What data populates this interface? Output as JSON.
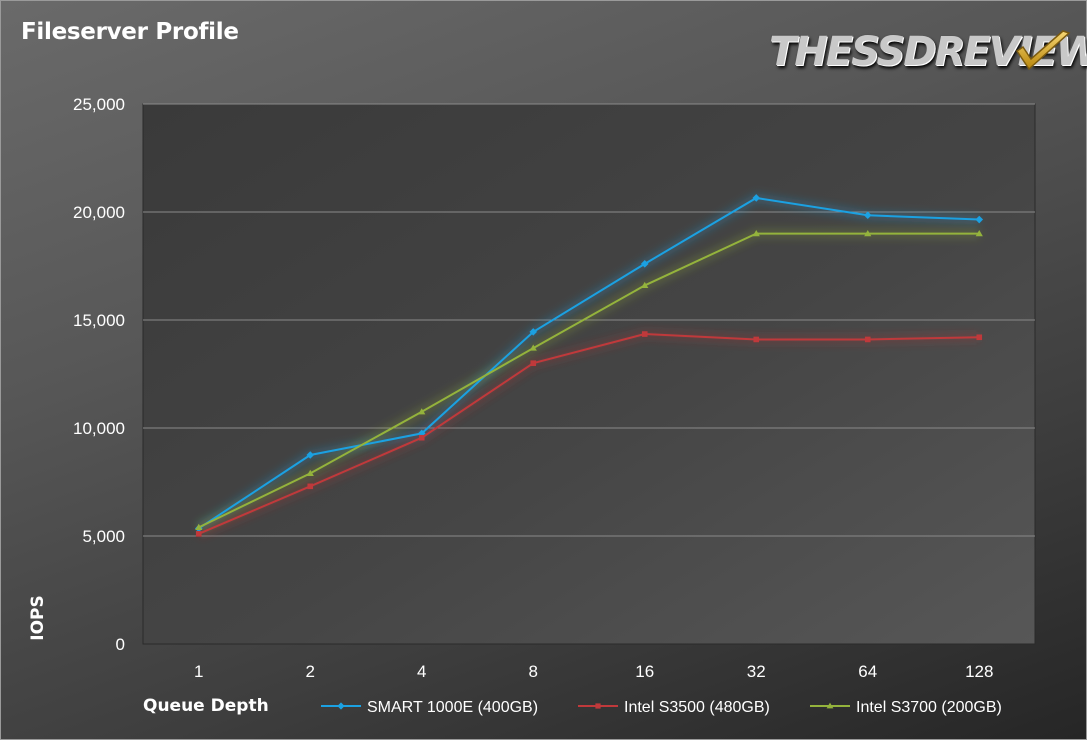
{
  "chart_data": {
    "type": "line",
    "title": "Fileserver Profile",
    "xlabel": "Queue Depth",
    "ylabel": "IOPS",
    "categories": [
      "1",
      "2",
      "4",
      "8",
      "16",
      "32",
      "64",
      "128"
    ],
    "ylim": [
      0,
      25000
    ],
    "yticks": [
      0,
      5000,
      10000,
      15000,
      20000,
      25000
    ],
    "ytick_labels": [
      "0",
      "5,000",
      "10,000",
      "15,000",
      "20,000",
      "25,000"
    ],
    "grid": true,
    "legend_position": "bottom",
    "series": [
      {
        "name": "SMART 1000E (400GB)",
        "color": "#1ba1e2",
        "marker": "diamond",
        "values": [
          5350,
          8750,
          9750,
          14450,
          17600,
          20650,
          19850,
          19650
        ]
      },
      {
        "name": "Intel S3500 (480GB)",
        "color": "#c0393b",
        "marker": "square",
        "values": [
          5100,
          7300,
          9550,
          13000,
          14350,
          14100,
          14100,
          14200
        ]
      },
      {
        "name": "Intel S3700 (200GB)",
        "color": "#94b33c",
        "marker": "triangle",
        "values": [
          5400,
          7900,
          10750,
          13700,
          16600,
          19000,
          19000,
          19000
        ]
      }
    ]
  },
  "branding": {
    "logo_text": "THESSDREVIEW",
    "check_icon": "checkmark-icon"
  }
}
